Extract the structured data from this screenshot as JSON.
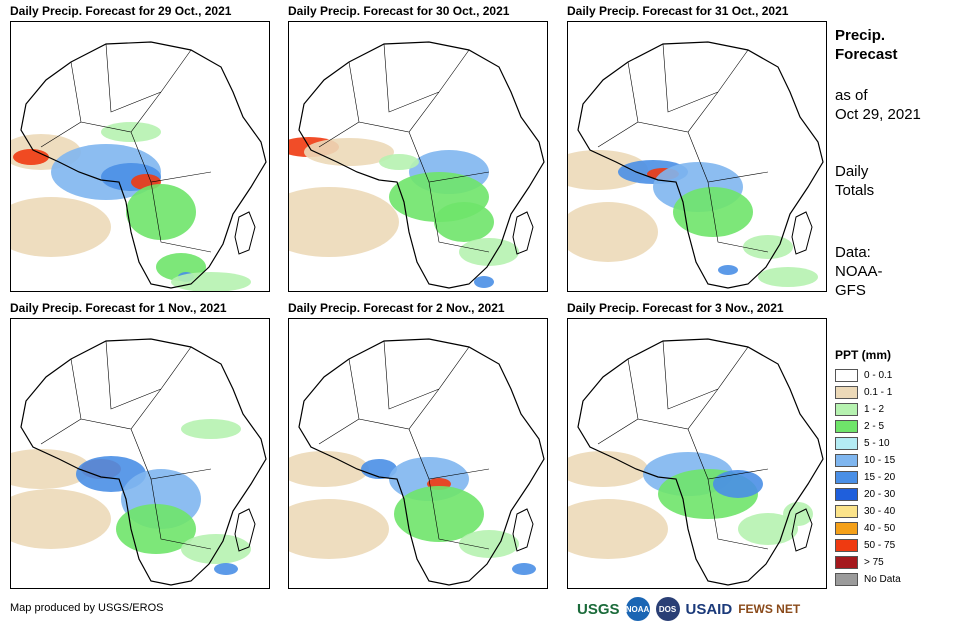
{
  "panels": [
    {
      "title": "Daily Precip. Forecast for 29 Oct., 2021"
    },
    {
      "title": "Daily Precip. Forecast for 30 Oct., 2021"
    },
    {
      "title": "Daily Precip. Forecast for 31 Oct., 2021"
    },
    {
      "title": "Daily Precip. Forecast for 1 Nov., 2021"
    },
    {
      "title": "Daily Precip. Forecast for 2 Nov., 2021"
    },
    {
      "title": "Daily Precip. Forecast for 3 Nov., 2021"
    }
  ],
  "sidebar": {
    "title_line1": "Precip.",
    "title_line2": "Forecast",
    "asof_line1": "as of",
    "asof_line2": "Oct 29, 2021",
    "daily_line1": "Daily",
    "daily_line2": "Totals",
    "data_line1": "Data:",
    "data_line2": "NOAA-",
    "data_line3": "GFS"
  },
  "legend": {
    "title": "PPT (mm)",
    "items": [
      {
        "label": "0 - 0.1",
        "color": "#ffffff"
      },
      {
        "label": "0.1 - 1",
        "color": "#ecd9b8"
      },
      {
        "label": "1 - 2",
        "color": "#b6f2b0"
      },
      {
        "label": "2 - 5",
        "color": "#6fe46a"
      },
      {
        "label": "5 - 10",
        "color": "#b4ecf4"
      },
      {
        "label": "10 - 15",
        "color": "#7fb6ef"
      },
      {
        "label": "15 - 20",
        "color": "#4a8fe6"
      },
      {
        "label": "20 - 30",
        "color": "#1f5fdc"
      },
      {
        "label": "30 - 40",
        "color": "#fbe38a"
      },
      {
        "label": "40 - 50",
        "color": "#f4a019"
      },
      {
        "label": "50 - 75",
        "color": "#ef3a11"
      },
      {
        "label": "> 75",
        "color": "#a5191d"
      },
      {
        "label": "No Data",
        "color": "#9b9b9b"
      }
    ]
  },
  "credit": "Map produced by USGS/EROS",
  "logos": {
    "usgs": "USGS",
    "noaa": "NOAA",
    "dos": "DOS",
    "usaid": "USAID",
    "fews": "FEWS NET"
  }
}
